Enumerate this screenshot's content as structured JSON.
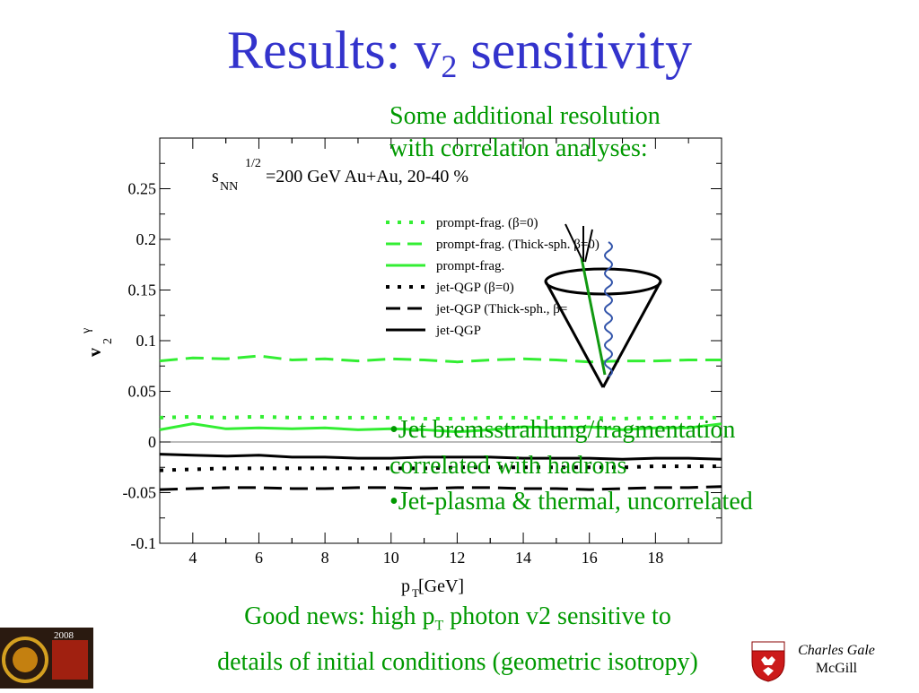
{
  "slide": {
    "title_main": "Results: v",
    "title_sub": "2",
    "title_rest": " sensitivity",
    "note_line1": "Some additional resolution",
    "note_line2": "with correlation analyses:",
    "bullet1": "•Jet bremsstrahlung/fragmentation correlated with hadrons",
    "bullet2": "•Jet-plasma & thermal, uncorrelated",
    "bottom_line1_a": "Good news: high p",
    "bottom_line1_sub": "T",
    "bottom_line1_b": " photon v2 sensitive to",
    "bottom_line2": "details of initial conditions (geometric isotropy)",
    "author_name": "Charles Gale",
    "author_affil": "McGill",
    "logo_left_text": "2008",
    "colors": {
      "title": "#3333cc",
      "text_green": "#009900",
      "series_green": "#33ee33",
      "series_black": "#000000"
    }
  },
  "chart_data": {
    "type": "line",
    "annotation": {
      "s": "s",
      "nn": "NN",
      "exp": "1/2",
      "rest": "=200 GeV  Au+Au,   20-40 %"
    },
    "ylabel_main": "v",
    "ylabel_sub": "2",
    "ylabel_sup": "γ",
    "xlabel_main": "p",
    "xlabel_sub": "T",
    "xlabel_rest": " [GeV]",
    "xlim": [
      3,
      20
    ],
    "ylim": [
      -0.1,
      0.3
    ],
    "xticks": [
      "4",
      "6",
      "8",
      "10",
      "12",
      "14",
      "16",
      "18"
    ],
    "yticks": [
      "0.25",
      "0.2",
      "0.15",
      "0.1",
      "0.05",
      "0",
      "-0.05",
      "-0.1"
    ],
    "x": [
      3,
      4,
      5,
      6,
      7,
      8,
      9,
      10,
      11,
      12,
      13,
      14,
      15,
      16,
      17,
      18,
      19,
      20
    ],
    "series": [
      {
        "name": "prompt-frag. (β=0)",
        "color": "#33ee33",
        "style": "dotted",
        "values": [
          0.024,
          0.025,
          0.024,
          0.025,
          0.024,
          0.024,
          0.024,
          0.024,
          0.023,
          0.023,
          0.024,
          0.024,
          0.024,
          0.024,
          0.023,
          0.024,
          0.024,
          0.024
        ]
      },
      {
        "name": "prompt-frag. (Thick-sph.  β=0)",
        "color": "#33ee33",
        "style": "dashed",
        "values": [
          0.08,
          0.083,
          0.082,
          0.085,
          0.081,
          0.082,
          0.08,
          0.082,
          0.081,
          0.079,
          0.081,
          0.082,
          0.081,
          0.079,
          0.08,
          0.08,
          0.081,
          0.081
        ]
      },
      {
        "name": "prompt-frag.",
        "color": "#33ee33",
        "style": "solid",
        "values": [
          0.012,
          0.018,
          0.013,
          0.014,
          0.013,
          0.014,
          0.012,
          0.013,
          0.012,
          0.01,
          0.012,
          0.015,
          0.014,
          0.015,
          0.012,
          0.014,
          0.014,
          0.018
        ]
      },
      {
        "name": "jet-QGP (β=0)",
        "color": "#000000",
        "style": "dotted",
        "values": [
          -0.028,
          -0.027,
          -0.026,
          -0.026,
          -0.026,
          -0.026,
          -0.026,
          -0.026,
          -0.026,
          -0.025,
          -0.025,
          -0.025,
          -0.025,
          -0.025,
          -0.025,
          -0.024,
          -0.024,
          -0.024
        ]
      },
      {
        "name": "jet-QGP (Thick-sph., β=",
        "color": "#000000",
        "style": "dashed",
        "values": [
          -0.047,
          -0.046,
          -0.045,
          -0.045,
          -0.046,
          -0.046,
          -0.045,
          -0.045,
          -0.046,
          -0.045,
          -0.045,
          -0.046,
          -0.046,
          -0.047,
          -0.046,
          -0.045,
          -0.045,
          -0.044
        ]
      },
      {
        "name": "jet-QGP",
        "color": "#000000",
        "style": "solid",
        "values": [
          -0.012,
          -0.013,
          -0.014,
          -0.013,
          -0.015,
          -0.015,
          -0.016,
          -0.016,
          -0.015,
          -0.015,
          -0.015,
          -0.016,
          -0.016,
          -0.016,
          -0.017,
          -0.016,
          -0.016,
          -0.017
        ]
      }
    ]
  }
}
